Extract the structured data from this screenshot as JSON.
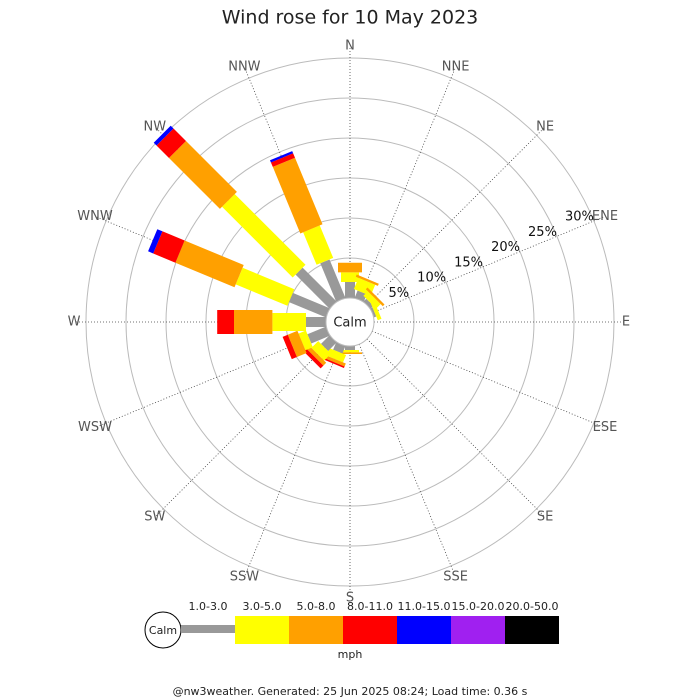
{
  "chart_data": {
    "type": "windrose",
    "title": "Wind rose for 10 May 2023",
    "calm_label": "Calm",
    "unit_label": "mph",
    "footer": "@nw3weather. Generated: 25 Jun 2025 08:24; Load time: 0.36 s",
    "categories": [
      "N",
      "NNE",
      "NE",
      "ENE",
      "E",
      "ESE",
      "SE",
      "SSE",
      "S",
      "SSW",
      "SW",
      "WSW",
      "W",
      "WNW",
      "NW",
      "NNW"
    ],
    "rlim": [
      0,
      30
    ],
    "rticks": [
      {
        "value": 5,
        "label": "5%"
      },
      {
        "value": 10,
        "label": "10%"
      },
      {
        "value": 15,
        "label": "15%"
      },
      {
        "value": 20,
        "label": "20%"
      },
      {
        "value": 25,
        "label": "25%"
      },
      {
        "value": 30,
        "label": "30%"
      }
    ],
    "series": [
      {
        "name": "1.0-3.0",
        "color": "#999999",
        "values": [
          2,
          1,
          0.5,
          0.3,
          0,
          0,
          0,
          0,
          0.5,
          1,
          1.5,
          2.5,
          2.5,
          5,
          6,
          5.2
        ]
      },
      {
        "name": "3.0-5.0",
        "color": "#ffff00",
        "values": [
          1.2,
          1.5,
          0.8,
          0.5,
          0,
          0,
          0,
          0,
          0.3,
          1,
          1.2,
          1,
          4.2,
          7,
          12.5,
          4.4
        ]
      },
      {
        "name": "5.0-8.0",
        "color": "#ffa000",
        "values": [
          1.2,
          0.3,
          0.3,
          0,
          0,
          0,
          0,
          0,
          0.2,
          0.4,
          0.5,
          1.3,
          4.8,
          8,
          9,
          9
        ]
      },
      {
        "name": "8.0-11.0",
        "color": "#ff0000",
        "values": [
          0,
          0,
          0,
          0,
          0,
          0,
          0,
          0,
          0,
          0.2,
          0.5,
          0.7,
          2.1,
          3,
          2.2,
          0.6
        ]
      },
      {
        "name": "11.0-15.0",
        "color": "#0000ff",
        "values": [
          0,
          0,
          0,
          0,
          0,
          0,
          0,
          0,
          0,
          0,
          0,
          0,
          0,
          0.7,
          0.5,
          0.3
        ]
      },
      {
        "name": "15.0-20.0",
        "color": "#a020f0",
        "values": [
          0,
          0,
          0,
          0,
          0,
          0,
          0,
          0,
          0,
          0,
          0,
          0,
          0,
          0,
          0,
          0
        ]
      },
      {
        "name": "20.0-50.0",
        "color": "#000000",
        "values": [
          0,
          0,
          0,
          0,
          0,
          0,
          0,
          0,
          0,
          0,
          0,
          0,
          0,
          0,
          0,
          0
        ]
      }
    ]
  }
}
